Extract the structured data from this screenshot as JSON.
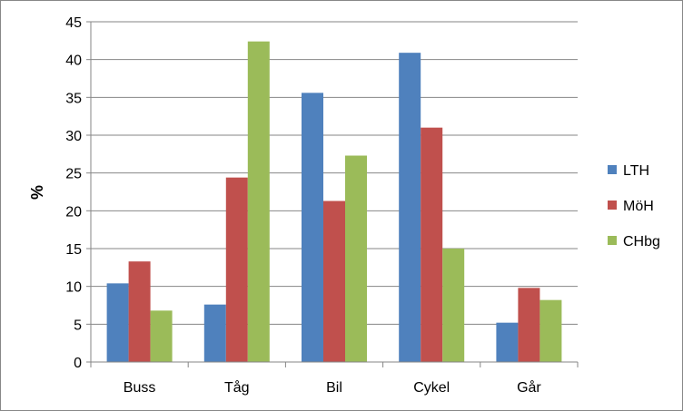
{
  "chart_data": {
    "type": "bar",
    "categories": [
      "Buss",
      "Tåg",
      "Bil",
      "Cykel",
      "Går"
    ],
    "series": [
      {
        "name": "LTH",
        "color": "#4F81BD",
        "values": [
          10.4,
          7.6,
          35.6,
          40.9,
          5.2
        ]
      },
      {
        "name": "MöH",
        "color": "#C0504D",
        "values": [
          13.3,
          24.4,
          21.3,
          31.0,
          9.8
        ]
      },
      {
        "name": "CHbg",
        "color": "#9BBB59",
        "values": [
          6.8,
          42.4,
          27.3,
          15.0,
          8.2
        ]
      }
    ],
    "xlabel": "",
    "ylabel": "%",
    "ylim": [
      0,
      45
    ],
    "yticks": [
      "0",
      "5",
      "10",
      "15",
      "20",
      "25",
      "30",
      "35",
      "40",
      "45"
    ],
    "grid": true,
    "legend_position": "right"
  }
}
